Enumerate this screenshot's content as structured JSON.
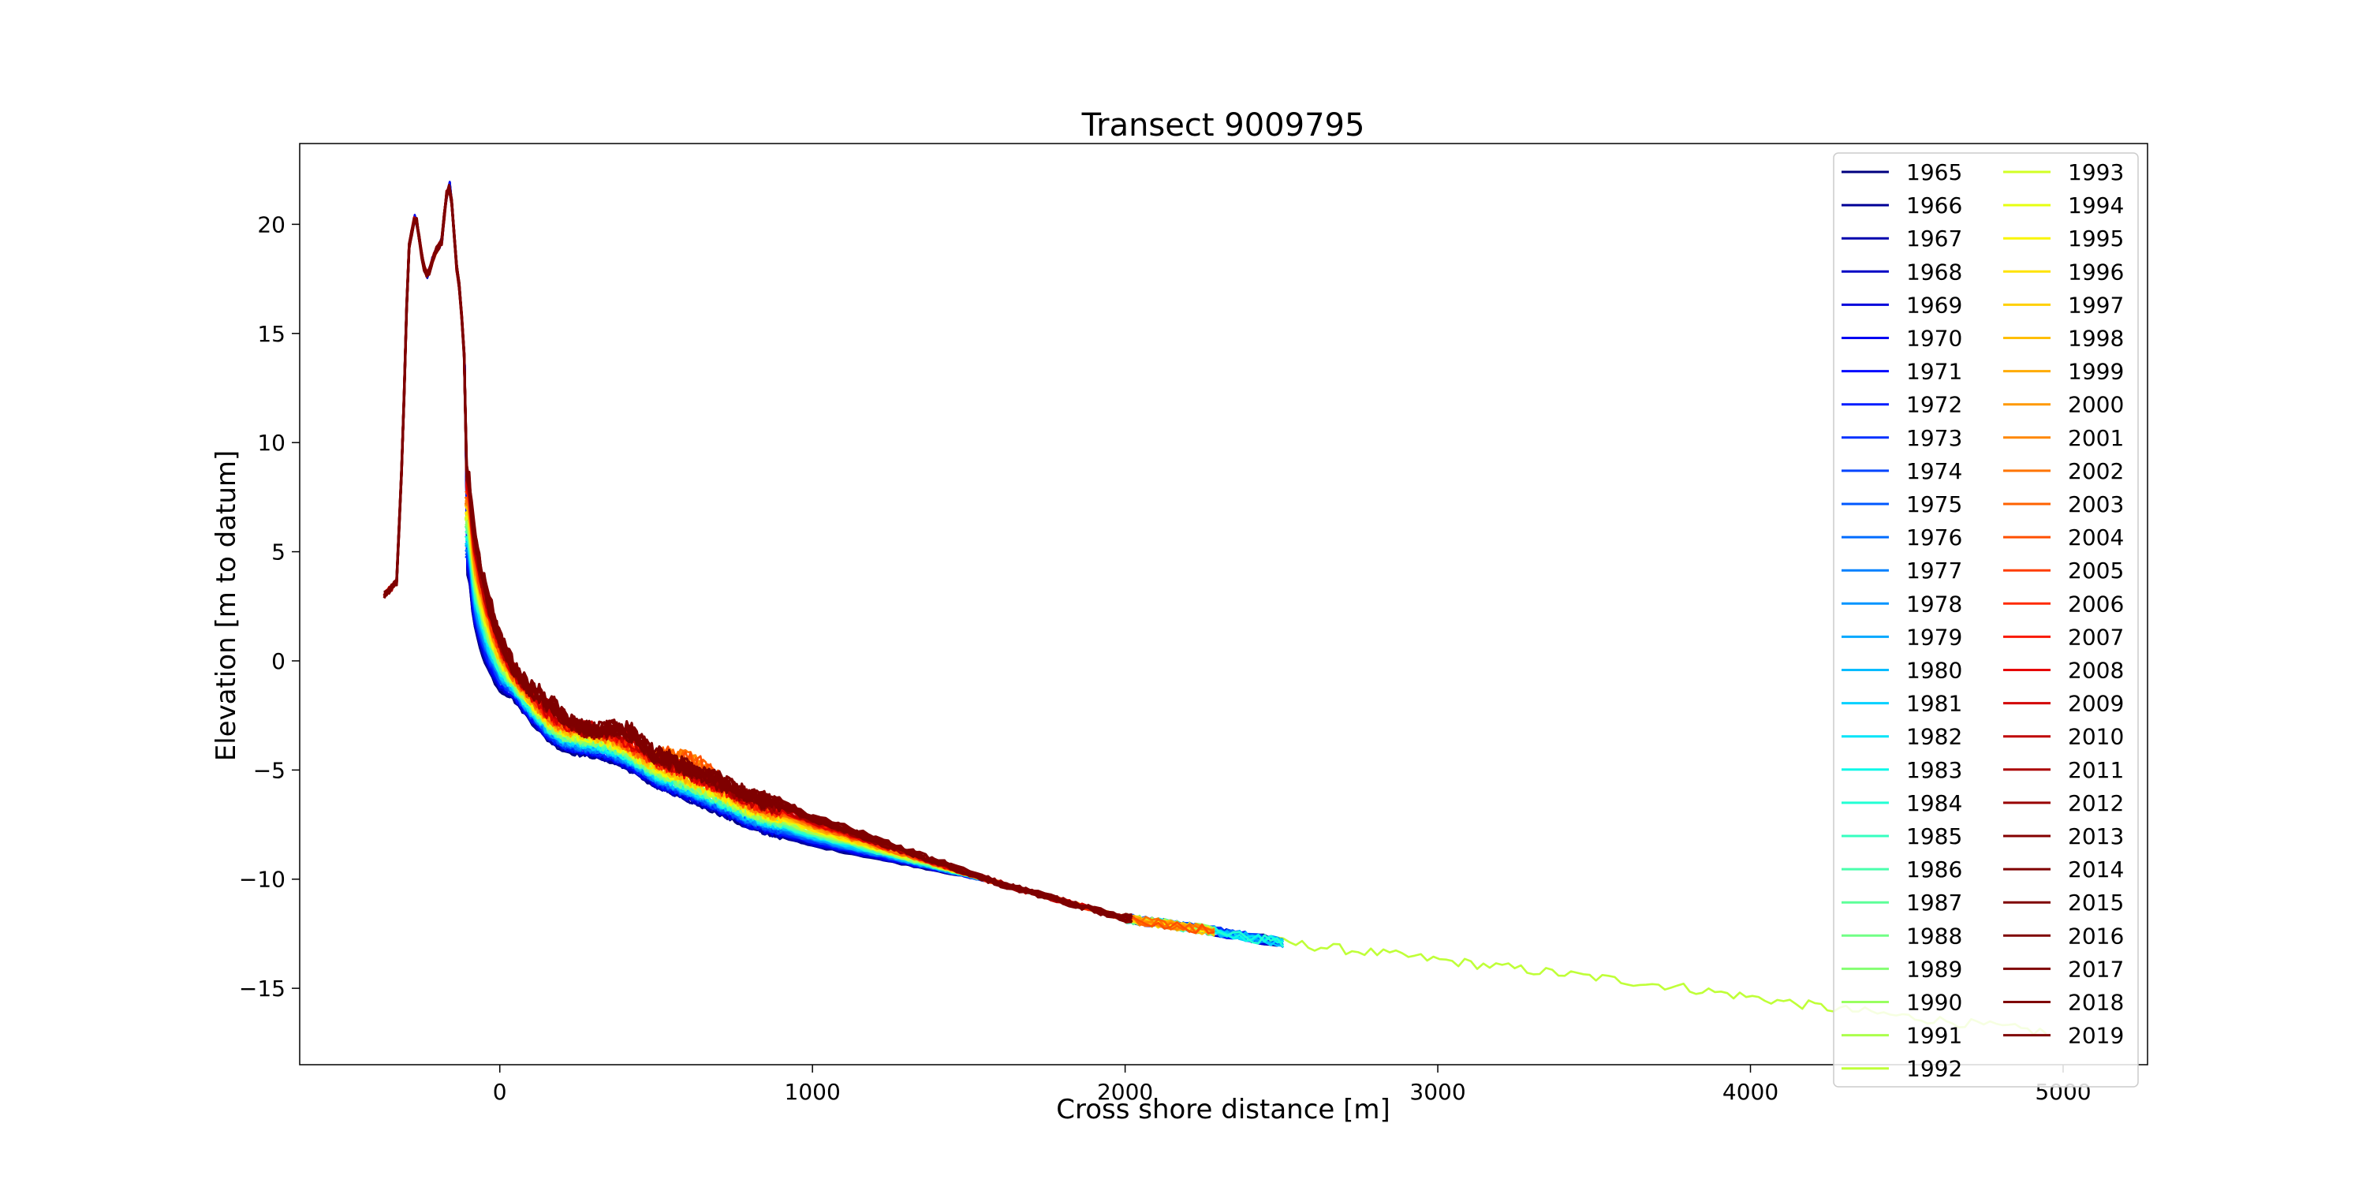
{
  "chart_data": {
    "type": "line",
    "title": "Transect 9009795",
    "xlabel": "Cross shore distance [m]",
    "ylabel": "Elevation [m to datum]",
    "xlim": [
      -640,
      5270
    ],
    "ylim": [
      -18.5,
      23.7
    ],
    "xticks": [
      0,
      1000,
      2000,
      3000,
      4000,
      5000
    ],
    "yticks": [
      -15,
      -10,
      -5,
      0,
      5,
      10,
      15,
      20
    ],
    "grid": false,
    "legend": {
      "placement": "upper-right",
      "columns": 2
    },
    "colormap": "jet",
    "series_names": [
      "1965",
      "1966",
      "1967",
      "1968",
      "1969",
      "1970",
      "1971",
      "1972",
      "1973",
      "1974",
      "1975",
      "1976",
      "1977",
      "1978",
      "1979",
      "1980",
      "1981",
      "1982",
      "1983",
      "1984",
      "1985",
      "1986",
      "1987",
      "1988",
      "1989",
      "1990",
      "1991",
      "1992",
      "1993",
      "1994",
      "1995",
      "1996",
      "1997",
      "1998",
      "1999",
      "2000",
      "2001",
      "2002",
      "2003",
      "2004",
      "2005",
      "2006",
      "2007",
      "2008",
      "2009",
      "2010",
      "2011",
      "2012",
      "2013",
      "2014",
      "2015",
      "2016",
      "2017",
      "2018",
      "2019"
    ],
    "series_colors": [
      "#00007f",
      "#000096",
      "#0000ad",
      "#0000c4",
      "#0000db",
      "#0000f2",
      "#0008ff",
      "#001cff",
      "#0030ff",
      "#0044ff",
      "#0058ff",
      "#006cff",
      "#0080ff",
      "#0094ff",
      "#00a8ff",
      "#00bcff",
      "#00d0ff",
      "#00e4f8",
      "#0ef8e8",
      "#22ffd4",
      "#36ffc0",
      "#4affad",
      "#5dff99",
      "#71ff86",
      "#84ff72",
      "#98ff5f",
      "#abff4b",
      "#bfff38",
      "#d2ff24",
      "#e6ff11",
      "#f9f500",
      "#ffe300",
      "#ffd000",
      "#ffbe00",
      "#ffab00",
      "#ff9900",
      "#ff8700",
      "#ff7400",
      "#ff6200",
      "#ff4f00",
      "#ff3d00",
      "#ff2a00",
      "#f91800",
      "#e60500",
      "#d20000",
      "#bf0000",
      "#ab0000",
      "#980000",
      "#840000",
      "#7f0000",
      "#7f0000",
      "#7f0000",
      "#7f0000",
      "#7f0000",
      "#7f0000"
    ],
    "dune_profile": {
      "x": [
        -370,
        -330,
        -310,
        -300,
        -290,
        -270,
        -258,
        -245,
        -230,
        -215,
        -200,
        -185,
        -172,
        -160,
        -150,
        -140,
        -128,
        -118,
        -110
      ],
      "y": [
        3.0,
        3.6,
        10.0,
        15.5,
        19.0,
        20.5,
        19.4,
        18.1,
        17.6,
        18.4,
        18.9,
        19.2,
        21.3,
        21.8,
        20.5,
        18.2,
        17.0,
        15.0,
        13.0
      ]
    },
    "nearshore_profile": {
      "x": [
        -100,
        -90,
        -80,
        -70,
        -60,
        -50,
        -40,
        -20,
        0,
        50,
        100,
        150,
        200,
        250,
        300,
        350,
        400,
        500,
        600,
        700,
        800,
        900,
        1000,
        1200,
        1400,
        1600,
        1800,
        2000
      ],
      "y": [
        6.5,
        4.8,
        3.7,
        3.0,
        2.4,
        1.9,
        1.4,
        0.6,
        -0.1,
        -1.1,
        -2.0,
        -2.8,
        -3.3,
        -3.5,
        -3.6,
        -3.8,
        -4.1,
        -5.0,
        -5.6,
        -6.2,
        -6.9,
        -7.3,
        -7.8,
        -8.6,
        -9.4,
        -10.2,
        -11.0,
        -11.8
      ]
    },
    "offshore_profile_1992": {
      "x": [
        2000,
        2250,
        2500,
        2750,
        3000,
        3250,
        3500,
        3750,
        4000,
        4250,
        4500,
        4750,
        5000
      ],
      "y": [
        -11.8,
        -12.3,
        -12.9,
        -13.3,
        -13.7,
        -14.1,
        -14.5,
        -14.9,
        -15.4,
        -15.9,
        -16.3,
        -16.7,
        -17.1
      ]
    },
    "series_extent_m": {
      "early": 2520,
      "mid": 2300,
      "late": 2040,
      "long": 4950
    }
  }
}
